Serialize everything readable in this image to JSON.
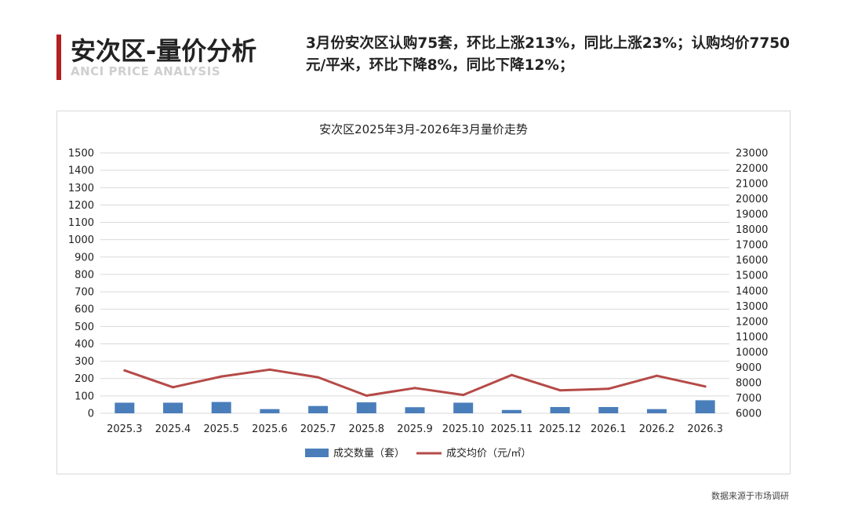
{
  "header": {
    "title": "安次区-量价分析",
    "subtitle": "ANCI PRICE ANALYSIS",
    "summary": "3月份安次区认购75套，环比上涨213%，同比上涨23%；认购均价7750元/平米，环比下降8%，同比下降12%；"
  },
  "footer": {
    "source": "数据来源于市场调研"
  },
  "colors": {
    "accent": "#b3201f",
    "bar": "#4a7ebb",
    "line": "#b54a48",
    "grid": "#d9d9d9"
  },
  "chart_data": {
    "type": "bar",
    "title": "安次区2025年3月-2026年3月量价走势",
    "categories": [
      "2025.3",
      "2025.4",
      "2025.5",
      "2025.6",
      "2025.7",
      "2025.8",
      "2025.9",
      "2025.10",
      "2025.11",
      "2025.12",
      "2026.1",
      "2026.2",
      "2026.3"
    ],
    "series": [
      {
        "name": "成交数量（套）",
        "type": "bar",
        "axis": "left",
        "values": [
          61,
          61,
          65,
          24,
          42,
          63,
          35,
          61,
          19,
          36,
          36,
          24,
          75
        ]
      },
      {
        "name": "成交均价（元/㎡）",
        "type": "line",
        "axis": "right",
        "values": [
          8800,
          7700,
          8400,
          8850,
          8350,
          7150,
          7650,
          7200,
          8500,
          7500,
          7600,
          8450,
          7750
        ]
      }
    ],
    "left_axis": {
      "min": 0,
      "max": 1500,
      "step": 100
    },
    "right_axis": {
      "min": 6000,
      "max": 23000,
      "step": 1000
    },
    "grid": true,
    "legend": "bottom"
  }
}
